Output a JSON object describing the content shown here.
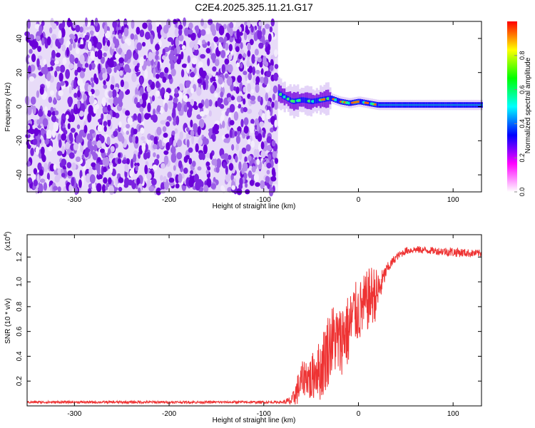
{
  "chart_data": [
    {
      "type": "heatmap",
      "title": "C2E4.2025.325.11.21.G17",
      "xlabel": "Height of straight line (km)",
      "ylabel": "Frequency (Hz)",
      "xlim": [
        -350,
        130
      ],
      "ylim": [
        -50,
        50
      ],
      "xticks": [
        "-300",
        "-200",
        "-100",
        "0",
        "100"
      ],
      "xtick_values": [
        -300,
        -200,
        -100,
        0,
        100
      ],
      "yticks": [
        "40",
        "20",
        "0",
        "-20",
        "-40"
      ],
      "ytick_values": [
        40,
        20,
        0,
        -20,
        -40
      ],
      "grid": false,
      "colorbar": {
        "label": "Normalized spectral amplitude",
        "range": [
          0,
          1
        ],
        "ticks": [
          "0.0",
          "0.2",
          "0.4",
          "0.6",
          "0.8"
        ],
        "tick_values": [
          0.0,
          0.2,
          0.4,
          0.6,
          0.8
        ],
        "colors": [
          "#ffffff",
          "#ff00ff",
          "#0000ff",
          "#00ffff",
          "#00ff00",
          "#ffff00",
          "#ff0000"
        ]
      },
      "regions": [
        {
          "x_range": [
            -350,
            -85
          ],
          "description_level": "noise",
          "freq_range": [
            -50,
            50
          ]
        },
        {
          "x_range": [
            -85,
            130
          ],
          "description_level": "signal",
          "center_freq": 0
        }
      ],
      "signal_center_hz": [
        [
          -85,
          8
        ],
        [
          -80,
          6
        ],
        [
          -70,
          3
        ],
        [
          -60,
          4
        ],
        [
          -50,
          3
        ],
        [
          -40,
          4
        ],
        [
          -30,
          5
        ],
        [
          -20,
          3
        ],
        [
          -10,
          2
        ],
        [
          0,
          3
        ],
        [
          10,
          2
        ],
        [
          20,
          1
        ],
        [
          40,
          1
        ],
        [
          60,
          1
        ],
        [
          80,
          1
        ],
        [
          100,
          1
        ],
        [
          130,
          1
        ]
      ]
    },
    {
      "type": "line",
      "xlabel": "Height of straight line (km)",
      "ylabel": "SNR (10 * v/v)",
      "yscale_label": "(x10",
      "yscale_exp": "4",
      "xlim": [
        -350,
        130
      ],
      "ylim": [
        0,
        1.38
      ],
      "xticks": [
        "-300",
        "-200",
        "-100",
        "0",
        "100"
      ],
      "xtick_values": [
        -300,
        -200,
        -100,
        0,
        100
      ],
      "yticks": [
        "0.2",
        "0.4",
        "0.6",
        "0.8",
        "1.0",
        "1.2"
      ],
      "ytick_values": [
        0.2,
        0.4,
        0.6,
        0.8,
        1.0,
        1.2
      ],
      "grid": false,
      "series": [
        {
          "color": "#ee3333",
          "x": [
            -350,
            -300,
            -250,
            -200,
            -150,
            -100,
            -80,
            -70,
            -65,
            -60,
            -55,
            -50,
            -45,
            -40,
            -35,
            -30,
            -25,
            -20,
            -15,
            -10,
            -5,
            0,
            5,
            10,
            15,
            20,
            25,
            30,
            40,
            50,
            60,
            80,
            100,
            120,
            130
          ],
          "y": [
            0.03,
            0.03,
            0.03,
            0.03,
            0.03,
            0.03,
            0.03,
            0.04,
            0.12,
            0.2,
            0.25,
            0.2,
            0.3,
            0.28,
            0.4,
            0.5,
            0.55,
            0.5,
            0.6,
            0.6,
            0.75,
            0.75,
            0.8,
            0.85,
            0.9,
            0.9,
            1.0,
            1.1,
            1.2,
            1.25,
            1.26,
            1.25,
            1.24,
            1.23,
            1.23
          ],
          "noise_amplitude": [
            0.01,
            0.01,
            0.01,
            0.01,
            0.01,
            0.01,
            0.01,
            0.05,
            0.12,
            0.15,
            0.15,
            0.2,
            0.2,
            0.25,
            0.3,
            0.3,
            0.3,
            0.3,
            0.3,
            0.3,
            0.25,
            0.25,
            0.25,
            0.25,
            0.25,
            0.2,
            0.1,
            0.05,
            0.03,
            0.03,
            0.03,
            0.03,
            0.04,
            0.03,
            0.03
          ]
        }
      ]
    }
  ]
}
